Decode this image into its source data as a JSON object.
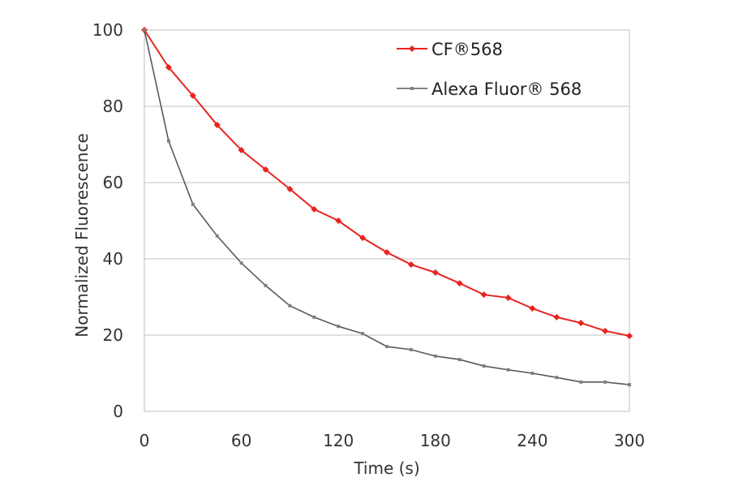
{
  "chart_data": {
    "type": "line",
    "title": "",
    "xlabel": "Time (s)",
    "ylabel": "Normalized Fluorescence",
    "xlim": [
      0,
      300
    ],
    "ylim": [
      0,
      100
    ],
    "xticks": [
      0,
      60,
      120,
      180,
      240,
      300
    ],
    "yticks": [
      0,
      20,
      40,
      60,
      80,
      100
    ],
    "grid": "horizontal",
    "legend": "top-right",
    "x": [
      0,
      15,
      30,
      45,
      60,
      75,
      90,
      105,
      120,
      135,
      150,
      165,
      180,
      195,
      210,
      225,
      240,
      255,
      270,
      285,
      300
    ],
    "series": [
      {
        "name": "CF®568",
        "color": "#e8231f",
        "marker": "diamond",
        "values": [
          100,
          90.2,
          82.8,
          75.1,
          68.5,
          63.4,
          58.3,
          53,
          50,
          45.5,
          41.7,
          38.5,
          36.4,
          33.6,
          30.6,
          29.8,
          27,
          24.7,
          23.2,
          21.1,
          19.8
        ]
      },
      {
        "name": "Alexa Fluor®  568",
        "color": "#595959",
        "marker": "square",
        "values": [
          100,
          70.9,
          54.3,
          46,
          38.9,
          33,
          27.7,
          24.7,
          22.3,
          20.4,
          17,
          16.2,
          14.5,
          13.6,
          11.9,
          10.9,
          10,
          8.9,
          7.7,
          7.7,
          7.0
        ]
      }
    ]
  }
}
